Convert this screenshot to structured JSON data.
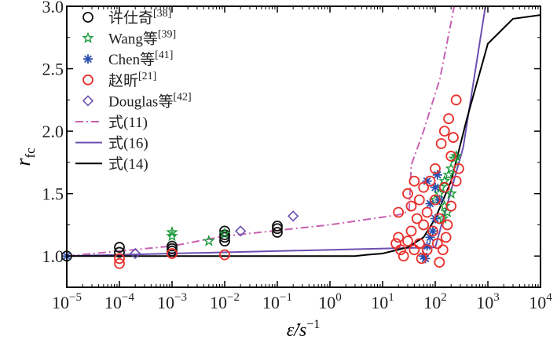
{
  "chart_data": {
    "type": "scatter",
    "title": "",
    "xlabel": "ε̇/s",
    "xlabel_sup": "−1",
    "ylabel": "r",
    "ylabel_sub": "fc",
    "xscale": "log",
    "xlim": [
      1e-05,
      10000
    ],
    "ylim": [
      0.75,
      3.0
    ],
    "xticks": [
      {
        "base": "10",
        "exp": "−5",
        "v": -5
      },
      {
        "base": "10",
        "exp": "−4",
        "v": -4
      },
      {
        "base": "10",
        "exp": "−3",
        "v": -3
      },
      {
        "base": "10",
        "exp": "−2",
        "v": -2
      },
      {
        "base": "10",
        "exp": "−1",
        "v": -1
      },
      {
        "base": "10",
        "exp": "0",
        "v": 0
      },
      {
        "base": "10",
        "exp": "1",
        "v": 1
      },
      {
        "base": "10",
        "exp": "2",
        "v": 2
      },
      {
        "base": "10",
        "exp": "3",
        "v": 3
      },
      {
        "base": "10",
        "exp": "4",
        "v": 4
      }
    ],
    "yticks": [
      "1.0",
      "1.5",
      "2.0",
      "2.5",
      "3.0"
    ],
    "legend_position": "top-left",
    "series": [
      {
        "name": "许仕奇",
        "ref": "[38]",
        "marker": "circle",
        "color": "#111111",
        "points": [
          [
            1e-05,
            1.0
          ],
          [
            0.0001,
            1.07
          ],
          [
            0.0001,
            1.03
          ],
          [
            0.001,
            1.08
          ],
          [
            0.001,
            1.06
          ],
          [
            0.001,
            1.04
          ],
          [
            0.01,
            1.2
          ],
          [
            0.01,
            1.17
          ],
          [
            0.01,
            1.15
          ],
          [
            0.01,
            1.12
          ],
          [
            0.1,
            1.24
          ],
          [
            0.1,
            1.22
          ],
          [
            0.1,
            1.19
          ]
        ]
      },
      {
        "name": "Wang等",
        "ref": "[39]",
        "marker": "star",
        "color": "#1a9a3a",
        "points": [
          [
            0.001,
            1.19
          ],
          [
            0.001,
            1.16
          ],
          [
            0.005,
            1.12
          ],
          [
            0.01,
            1.18
          ],
          [
            100,
            1.45
          ],
          [
            120,
            1.5
          ],
          [
            130,
            1.55
          ],
          [
            150,
            1.4
          ],
          [
            150,
            1.6
          ],
          [
            180,
            1.65
          ],
          [
            200,
            1.7
          ],
          [
            230,
            1.78
          ],
          [
            250,
            1.8
          ],
          [
            200,
            1.5
          ],
          [
            170,
            1.35
          ],
          [
            140,
            1.3
          ]
        ]
      },
      {
        "name": "Chen等",
        "ref": "[41]",
        "marker": "asterisk",
        "color": "#2a4fb0",
        "points": [
          [
            1e-05,
            1.0
          ],
          [
            60,
            1.0
          ],
          [
            65,
            0.98
          ],
          [
            70,
            1.08
          ],
          [
            80,
            1.15
          ],
          [
            90,
            1.2
          ],
          [
            100,
            1.3
          ],
          [
            100,
            1.55
          ],
          [
            110,
            1.65
          ],
          [
            120,
            1.45
          ],
          [
            70,
            1.6
          ],
          [
            80,
            1.42
          ]
        ]
      },
      {
        "name": "赵昕",
        "ref": "[21]",
        "marker": "circle",
        "color": "#e8302c",
        "points": [
          [
            0.0001,
            0.98
          ],
          [
            0.0001,
            0.94
          ],
          [
            0.001,
            1.02
          ],
          [
            0.01,
            1.01
          ],
          [
            20,
            1.35
          ],
          [
            20,
            1.15
          ],
          [
            18,
            1.1
          ],
          [
            22,
            1.05
          ],
          [
            25,
            1.0
          ],
          [
            30,
            1.12
          ],
          [
            30,
            1.5
          ],
          [
            35,
            1.4
          ],
          [
            35,
            1.2
          ],
          [
            40,
            1.05
          ],
          [
            40,
            1.6
          ],
          [
            45,
            1.3
          ],
          [
            50,
            1.45
          ],
          [
            50,
            1.1
          ],
          [
            55,
            0.98
          ],
          [
            60,
            1.55
          ],
          [
            60,
            1.25
          ],
          [
            70,
            1.05
          ],
          [
            70,
            1.35
          ],
          [
            80,
            1.6
          ],
          [
            90,
            1.2
          ],
          [
            100,
            1.7
          ],
          [
            100,
            1.45
          ],
          [
            110,
            1.1
          ],
          [
            120,
            1.3
          ],
          [
            130,
            1.9
          ],
          [
            150,
            1.55
          ],
          [
            150,
            2.0
          ],
          [
            170,
            1.25
          ],
          [
            180,
            2.1
          ],
          [
            200,
            1.8
          ],
          [
            200,
            1.4
          ],
          [
            220,
            1.95
          ],
          [
            250,
            2.25
          ],
          [
            250,
            1.6
          ],
          [
            280,
            1.7
          ],
          [
            160,
            1.15
          ],
          [
            140,
            1.05
          ],
          [
            120,
            0.95
          ]
        ]
      },
      {
        "name": "Douglas等",
        "ref": "[42]",
        "marker": "diamond",
        "color": "#6a4fb0",
        "points": [
          [
            0.0002,
            1.02
          ],
          [
            0.02,
            1.2
          ],
          [
            0.2,
            1.32
          ]
        ]
      },
      {
        "name": "式(11)",
        "ref": "",
        "line": "dashdot",
        "color": "#c860b0",
        "points": [
          [
            1e-05,
            1.0
          ],
          [
            0.001,
            1.08
          ],
          [
            0.01,
            1.16
          ],
          [
            1,
            1.25
          ],
          [
            20,
            1.33
          ],
          [
            32,
            1.36
          ],
          [
            35,
            1.73
          ],
          [
            60,
            2.0
          ],
          [
            123,
            2.42
          ],
          [
            230,
            3.0
          ]
        ]
      },
      {
        "name": "式(16)",
        "ref": "",
        "line": "solid",
        "color": "#6a4fb0",
        "points": [
          [
            1e-05,
            1.0
          ],
          [
            100,
            1.07
          ],
          [
            340,
            1.87
          ],
          [
            900,
            3.0
          ]
        ]
      },
      {
        "name": "式(14)",
        "ref": "",
        "line": "solid",
        "color": "#000000",
        "points": [
          [
            1e-05,
            1.0
          ],
          [
            3,
            1.0
          ],
          [
            5,
            1.01
          ],
          [
            10,
            1.02
          ],
          [
            30,
            1.07
          ],
          [
            60,
            1.15
          ],
          [
            100,
            1.3
          ],
          [
            200,
            1.6
          ],
          [
            400,
            2.1
          ],
          [
            1000,
            2.7
          ],
          [
            3000,
            2.9
          ],
          [
            10000,
            2.93
          ]
        ]
      }
    ]
  }
}
